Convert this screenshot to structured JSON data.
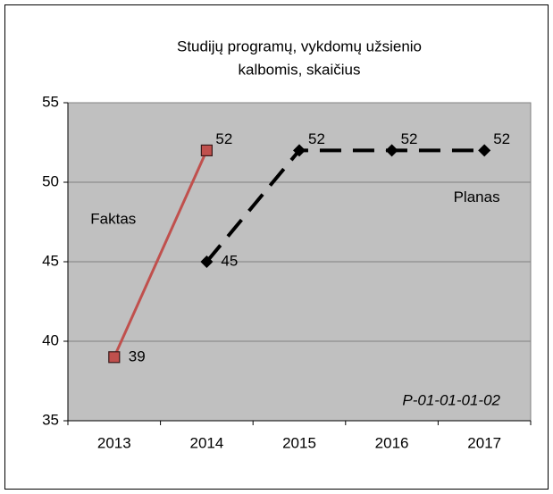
{
  "chart_data": {
    "type": "line",
    "title": [
      "Studijų programų, vykdomų užsienio",
      "kalbomis, skaičius"
    ],
    "categories": [
      "2013",
      "2014",
      "2015",
      "2016",
      "2017"
    ],
    "series": [
      {
        "name": "Faktas",
        "color": "#c0504d",
        "values": [
          39,
          52,
          null,
          null,
          null
        ]
      },
      {
        "name": "Planas",
        "color": "#000000",
        "values": [
          null,
          45,
          52,
          52,
          52
        ]
      }
    ],
    "annotation": "P-01-01-01-02",
    "ylim": [
      35,
      55
    ],
    "yticks": [
      35,
      40,
      45,
      50,
      55
    ],
    "grid": true
  }
}
